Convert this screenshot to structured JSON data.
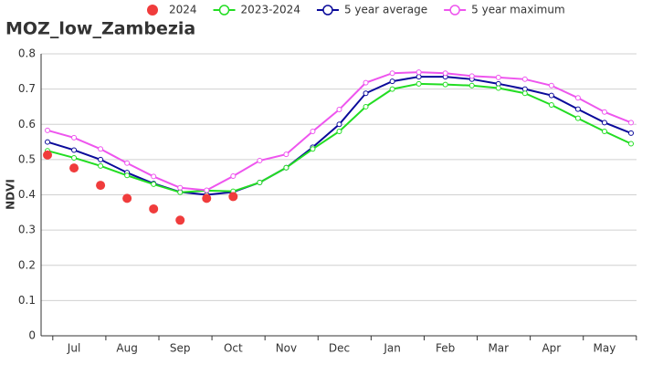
{
  "chart_data": {
    "type": "line",
    "title": "MOZ_low_Zambezia",
    "y_label": "NDVI",
    "categories": [
      null,
      "Jul",
      null,
      "Aug",
      null,
      "Sep",
      null,
      "Oct",
      null,
      "Nov",
      null,
      "Dec",
      null,
      "Jan",
      null,
      "Feb",
      null,
      "Mar",
      null,
      "Apr",
      null,
      "May",
      null
    ],
    "series": [
      {
        "name": "2024",
        "color": "#f03c3c",
        "mode": "markers",
        "values": [
          0.513,
          0.476,
          0.427,
          0.39,
          0.36,
          0.328,
          0.39,
          0.395,
          null,
          null,
          null,
          null,
          null,
          null,
          null,
          null,
          null,
          null,
          null,
          null,
          null,
          null,
          null
        ]
      },
      {
        "name": "2023-2024",
        "color": "#22dd22",
        "mode": "lines",
        "values": [
          0.525,
          0.505,
          0.482,
          0.455,
          0.43,
          0.407,
          0.412,
          0.41,
          0.435,
          0.477,
          0.53,
          0.58,
          0.65,
          0.7,
          0.715,
          0.713,
          0.71,
          0.703,
          0.688,
          0.655,
          0.617,
          0.58,
          0.545
        ]
      },
      {
        "name": "5 year average",
        "color": "#0a0a9a",
        "mode": "lines",
        "values": [
          0.55,
          0.527,
          0.5,
          0.463,
          0.432,
          0.408,
          0.4,
          0.408,
          0.435,
          0.477,
          0.535,
          0.6,
          0.688,
          0.722,
          0.735,
          0.735,
          0.728,
          0.715,
          0.7,
          0.682,
          0.643,
          0.605,
          0.575
        ]
      },
      {
        "name": "5 year maximum",
        "color": "#ee55ee",
        "mode": "lines",
        "values": [
          0.583,
          0.562,
          0.53,
          0.49,
          0.452,
          0.42,
          0.413,
          0.453,
          0.497,
          0.515,
          0.58,
          0.642,
          0.718,
          0.745,
          0.748,
          0.745,
          0.737,
          0.733,
          0.728,
          0.71,
          0.675,
          0.635,
          0.605
        ]
      }
    ],
    "ylim": [
      0,
      0.8
    ],
    "yticks": [
      0,
      0.1,
      0.2,
      0.3,
      0.4,
      0.5,
      0.6,
      0.7,
      0.8
    ],
    "grid": true
  }
}
